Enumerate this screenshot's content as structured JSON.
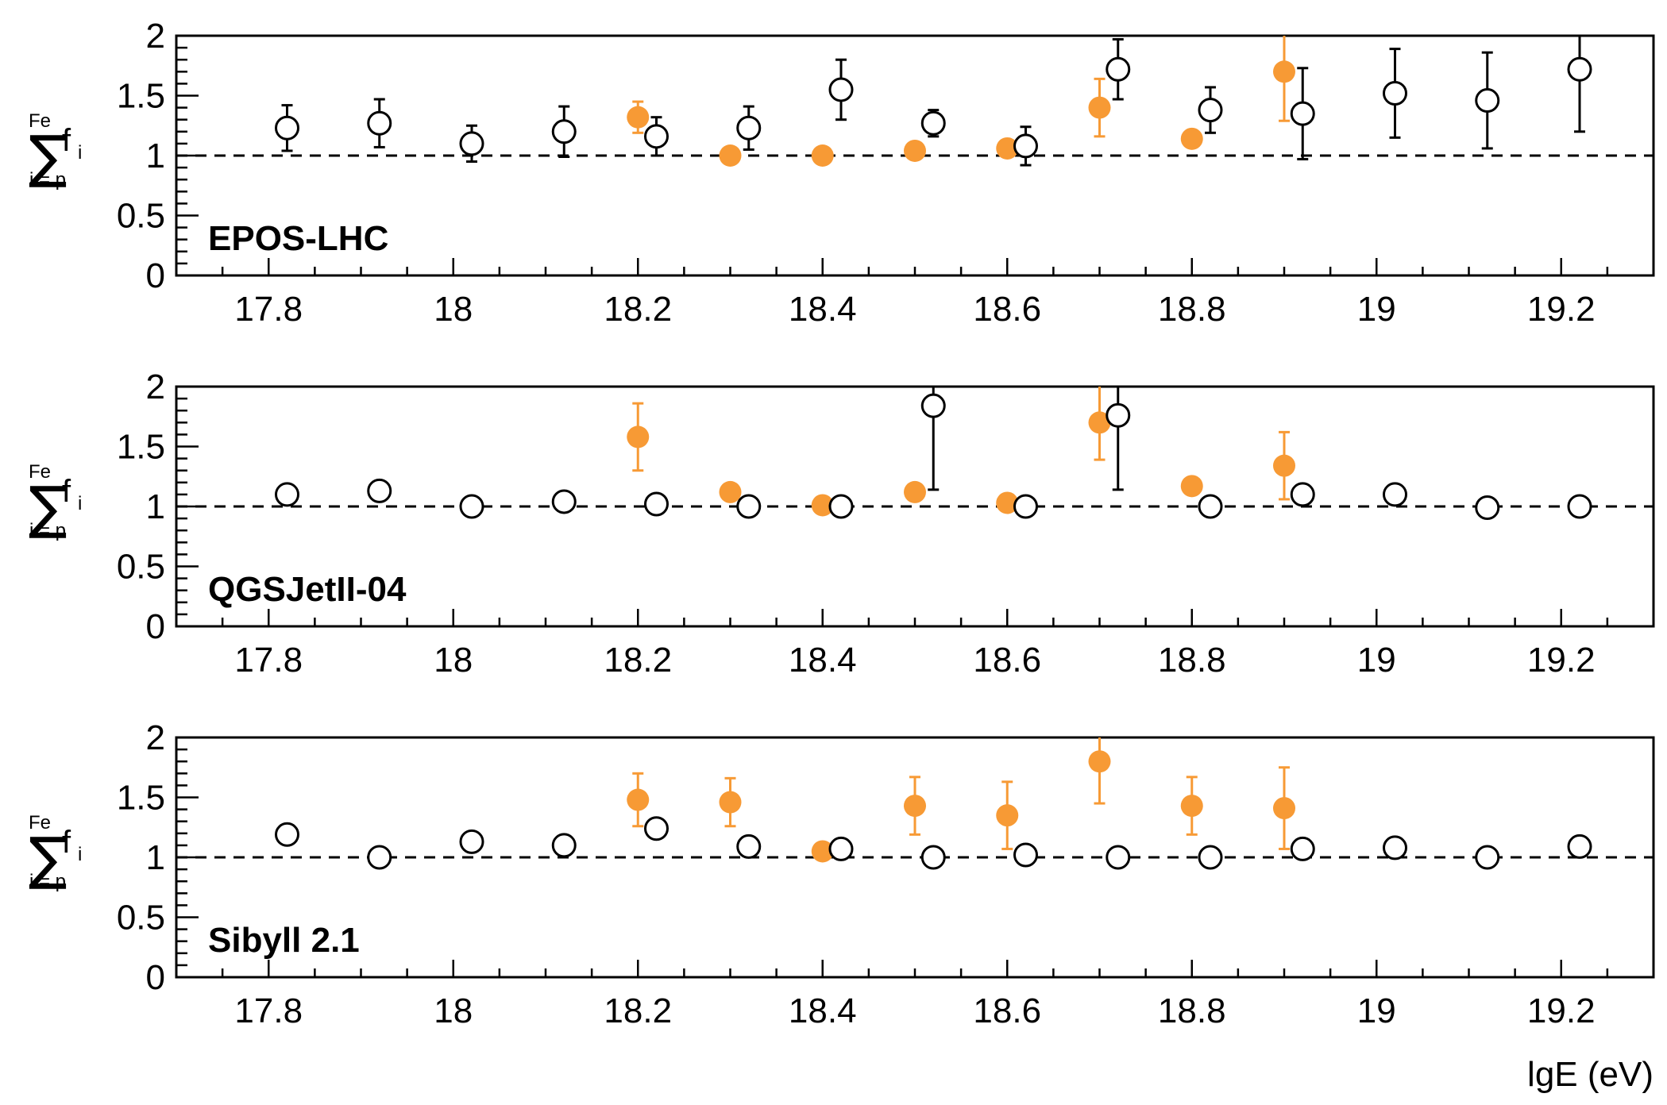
{
  "chart_data": {
    "type": "scatter",
    "xlabel": "lgE (eV)",
    "ylabel": {
      "symbol": "∑",
      "term": "f",
      "sub": "i",
      "upper": "Fe",
      "lower": "i = p"
    },
    "xlim": [
      17.7,
      19.3
    ],
    "ylim": [
      0,
      2
    ],
    "xticks": [
      "17.8",
      "18",
      "18.2",
      "18.4",
      "18.6",
      "18.8",
      "19",
      "19.2"
    ],
    "yticks": [
      "0",
      "0.5",
      "1",
      "1.5",
      "2"
    ],
    "reference_line": 1,
    "colors": {
      "filled": "#f79a35",
      "open": "#000000"
    },
    "panels": [
      {
        "label": "EPOS-LHC",
        "series": [
          {
            "style": "filled",
            "x": [
              18.2,
              18.3,
              18.4,
              18.5,
              18.6,
              18.7,
              18.8,
              18.9
            ],
            "y": [
              1.32,
              1.0,
              1.0,
              1.04,
              1.06,
              1.4,
              1.14,
              1.7
            ],
            "err": [
              0.13,
              0.03,
              0.03,
              0.03,
              0.03,
              0.24,
              0.03,
              0.41
            ]
          },
          {
            "style": "open",
            "x": [
              17.82,
              17.92,
              18.02,
              18.12,
              18.22,
              18.32,
              18.42,
              18.52,
              18.62,
              18.72,
              18.82,
              18.92,
              19.02,
              19.12,
              19.22
            ],
            "y": [
              1.23,
              1.27,
              1.1,
              1.2,
              1.16,
              1.23,
              1.55,
              1.27,
              1.08,
              1.72,
              1.38,
              1.35,
              1.52,
              1.46,
              1.72
            ],
            "err": [
              0.19,
              0.2,
              0.15,
              0.21,
              0.16,
              0.18,
              0.25,
              0.11,
              0.16,
              0.25,
              0.19,
              0.38,
              0.37,
              0.4,
              0.52
            ]
          }
        ]
      },
      {
        "label": "QGSJetII-04",
        "series": [
          {
            "style": "filled",
            "x": [
              18.2,
              18.3,
              18.4,
              18.5,
              18.6,
              18.7,
              18.8,
              18.9
            ],
            "y": [
              1.58,
              1.12,
              1.01,
              1.12,
              1.03,
              1.7,
              1.17,
              1.34
            ],
            "err": [
              0.28,
              0.03,
              0.03,
              0.03,
              0.03,
              0.31,
              0.03,
              0.28
            ]
          },
          {
            "style": "open",
            "x": [
              17.82,
              17.92,
              18.02,
              18.12,
              18.22,
              18.32,
              18.42,
              18.52,
              18.62,
              18.72,
              18.82,
              18.92,
              19.02,
              19.12,
              19.22
            ],
            "y": [
              1.1,
              1.13,
              1.0,
              1.04,
              1.02,
              1.0,
              1.0,
              1.84,
              1.0,
              1.76,
              1.0,
              1.1,
              1.1,
              0.99,
              1.0
            ],
            "err": [
              0.03,
              0.03,
              0.03,
              0.03,
              0.03,
              0.03,
              0.03,
              0.7,
              0.03,
              0.62,
              0.03,
              0.03,
              0.03,
              0.03,
              0.03
            ]
          }
        ]
      },
      {
        "label": "Sibyll 2.1",
        "series": [
          {
            "style": "filled",
            "x": [
              18.2,
              18.3,
              18.4,
              18.5,
              18.6,
              18.7,
              18.8,
              18.9
            ],
            "y": [
              1.48,
              1.46,
              1.05,
              1.43,
              1.35,
              1.8,
              1.43,
              1.41
            ],
            "err": [
              0.22,
              0.2,
              0.03,
              0.24,
              0.28,
              0.35,
              0.24,
              0.34
            ]
          },
          {
            "style": "open",
            "x": [
              17.82,
              17.92,
              18.02,
              18.12,
              18.22,
              18.32,
              18.42,
              18.52,
              18.62,
              18.72,
              18.82,
              18.92,
              19.02,
              19.12,
              19.22
            ],
            "y": [
              1.19,
              1.0,
              1.13,
              1.1,
              1.24,
              1.09,
              1.07,
              1.0,
              1.02,
              1.0,
              1.0,
              1.07,
              1.08,
              1.0,
              1.09
            ],
            "err": [
              0.04,
              0.03,
              0.08,
              0.04,
              0.03,
              0.03,
              0.03,
              0.03,
              0.03,
              0.03,
              0.03,
              0.03,
              0.03,
              0.03,
              0.03
            ]
          }
        ]
      }
    ]
  }
}
